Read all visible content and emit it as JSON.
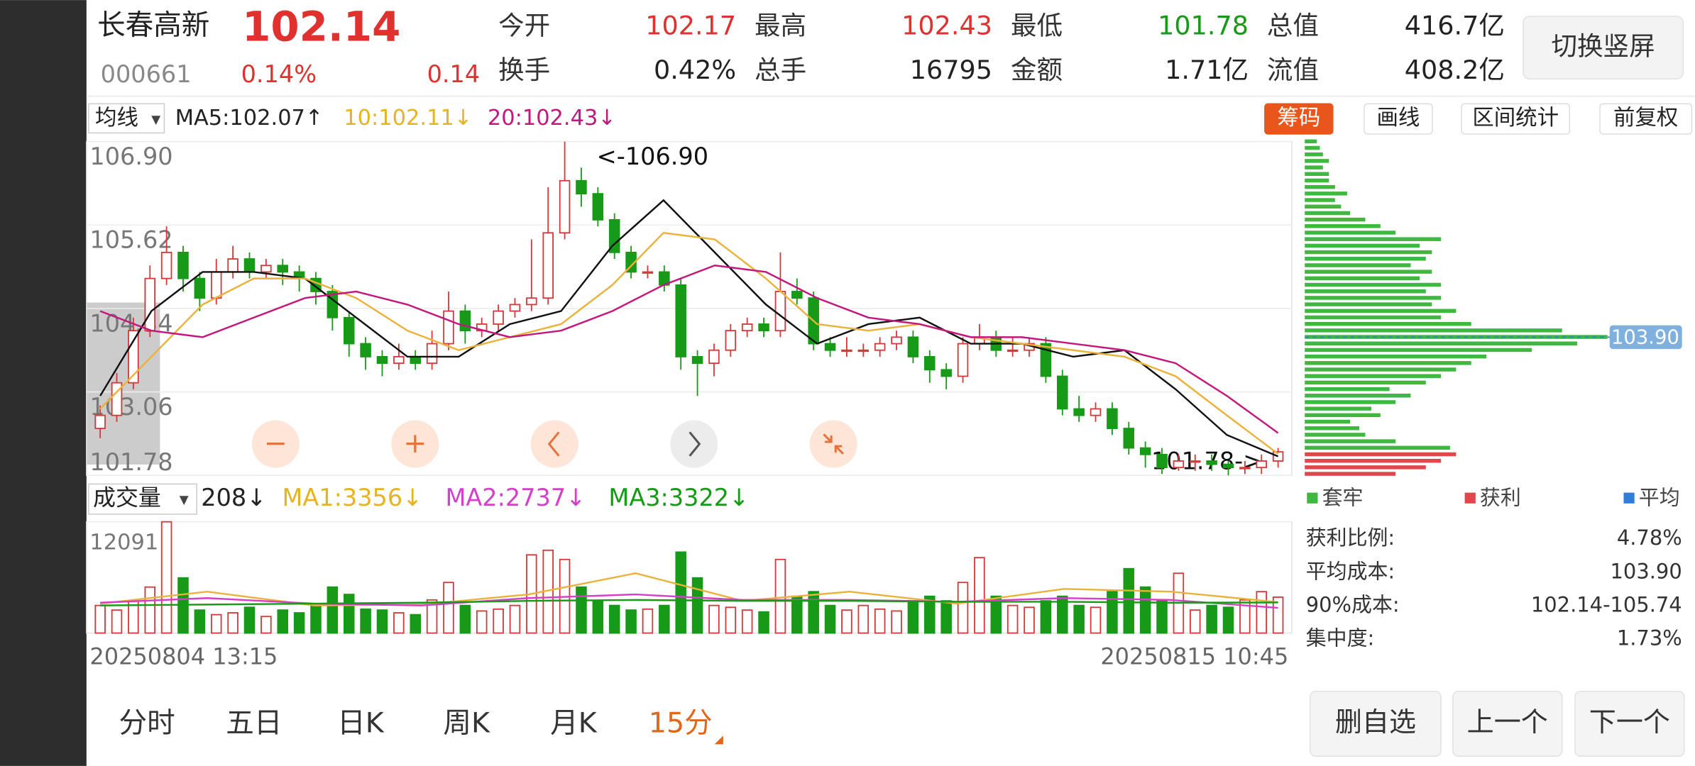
{
  "header": {
    "name": "长春高新",
    "price": "102.14",
    "code": "000661",
    "change_pct": "0.14%",
    "change": "0.14",
    "fields": [
      {
        "label": "今开",
        "value": "102.17",
        "color": "#e0312f"
      },
      {
        "label": "换手",
        "value": "0.42%",
        "color": "#222222"
      },
      {
        "label": "最高",
        "value": "102.43",
        "color": "#e0312f"
      },
      {
        "label": "总手",
        "value": "16795",
        "color": "#222222"
      },
      {
        "label": "最低",
        "value": "101.78",
        "color": "#179a17"
      },
      {
        "label": "金额",
        "value": "1.71亿",
        "color": "#222222"
      },
      {
        "label": "总值",
        "value": "416.7亿",
        "color": "#222222"
      },
      {
        "label": "流值",
        "value": "408.2亿",
        "color": "#222222"
      }
    ],
    "button": "切换竖屏"
  },
  "toolbar": {
    "ma_select": "均线",
    "ma": [
      {
        "text": "MA5:102.07↑",
        "color": "#222222"
      },
      {
        "text": "10:102.11↓",
        "color": "#e8b320"
      },
      {
        "text": "20:102.43↓",
        "color": "#c2187e"
      }
    ],
    "buttons": [
      "筹码",
      "画线",
      "区间统计",
      "前复权"
    ]
  },
  "chart_data": {
    "type": "candlestick",
    "candles": [
      [
        102.5,
        102.85,
        102.35,
        102.7
      ],
      [
        102.7,
        103.35,
        102.6,
        103.2
      ],
      [
        103.2,
        104.2,
        103.1,
        104.0
      ],
      [
        104.0,
        105.0,
        103.9,
        104.8
      ],
      [
        104.8,
        105.6,
        104.7,
        105.2
      ],
      [
        105.2,
        105.3,
        104.6,
        104.8
      ],
      [
        104.8,
        104.9,
        104.3,
        104.5
      ],
      [
        104.5,
        105.1,
        104.4,
        104.9
      ],
      [
        104.9,
        105.3,
        104.8,
        105.1
      ],
      [
        105.1,
        105.2,
        104.8,
        104.9
      ],
      [
        104.9,
        105.1,
        104.8,
        105.0
      ],
      [
        105.0,
        105.1,
        104.7,
        104.9
      ],
      [
        104.9,
        105.0,
        104.6,
        104.8
      ],
      [
        104.8,
        104.9,
        104.4,
        104.6
      ],
      [
        104.6,
        104.7,
        104.0,
        104.2
      ],
      [
        104.2,
        104.3,
        103.6,
        103.8
      ],
      [
        103.8,
        103.9,
        103.4,
        103.6
      ],
      [
        103.6,
        103.7,
        103.3,
        103.5
      ],
      [
        103.5,
        103.8,
        103.4,
        103.6
      ],
      [
        103.6,
        103.7,
        103.4,
        103.5
      ],
      [
        103.5,
        104.0,
        103.4,
        103.8
      ],
      [
        103.8,
        104.6,
        103.7,
        104.3
      ],
      [
        104.3,
        104.4,
        103.8,
        104.0
      ],
      [
        104.0,
        104.2,
        103.9,
        104.1
      ],
      [
        104.1,
        104.4,
        104.0,
        104.3
      ],
      [
        104.3,
        104.5,
        104.2,
        104.4
      ],
      [
        104.4,
        105.4,
        104.3,
        104.5
      ],
      [
        104.5,
        106.2,
        104.4,
        105.5
      ],
      [
        105.5,
        106.9,
        105.4,
        106.3
      ],
      [
        106.3,
        106.5,
        105.9,
        106.1
      ],
      [
        106.1,
        106.2,
        105.6,
        105.7
      ],
      [
        105.7,
        105.8,
        105.1,
        105.2
      ],
      [
        105.2,
        105.3,
        104.8,
        104.9
      ],
      [
        104.9,
        105.0,
        104.8,
        104.9
      ],
      [
        104.9,
        105.0,
        104.6,
        104.7
      ],
      [
        104.7,
        104.8,
        103.4,
        103.6
      ],
      [
        103.6,
        103.7,
        103.0,
        103.5
      ],
      [
        103.5,
        103.8,
        103.3,
        103.7
      ],
      [
        103.7,
        104.1,
        103.6,
        104.0
      ],
      [
        104.0,
        104.2,
        103.9,
        104.1
      ],
      [
        104.1,
        104.2,
        103.9,
        104.0
      ],
      [
        104.0,
        105.2,
        103.9,
        104.6
      ],
      [
        104.6,
        104.8,
        104.4,
        104.5
      ],
      [
        104.5,
        104.6,
        103.7,
        103.8
      ],
      [
        103.8,
        103.9,
        103.6,
        103.7
      ],
      [
        103.7,
        103.9,
        103.6,
        103.7
      ],
      [
        103.7,
        103.8,
        103.6,
        103.7
      ],
      [
        103.7,
        103.9,
        103.6,
        103.8
      ],
      [
        103.8,
        104.0,
        103.7,
        103.9
      ],
      [
        103.9,
        104.0,
        103.5,
        103.6
      ],
      [
        103.6,
        103.7,
        103.2,
        103.4
      ],
      [
        103.4,
        103.5,
        103.1,
        103.3
      ],
      [
        103.3,
        103.9,
        103.2,
        103.8
      ],
      [
        103.8,
        104.1,
        103.7,
        103.9
      ],
      [
        103.9,
        104.0,
        103.6,
        103.7
      ],
      [
        103.7,
        103.9,
        103.6,
        103.7
      ],
      [
        103.7,
        103.9,
        103.6,
        103.8
      ],
      [
        103.8,
        103.9,
        103.2,
        103.3
      ],
      [
        103.3,
        103.4,
        102.7,
        102.8
      ],
      [
        102.8,
        103.0,
        102.6,
        102.7
      ],
      [
        102.7,
        102.9,
        102.6,
        102.8
      ],
      [
        102.8,
        102.9,
        102.4,
        102.5
      ],
      [
        102.5,
        102.6,
        102.1,
        102.2
      ],
      [
        102.2,
        102.3,
        101.9,
        102.1
      ],
      [
        102.1,
        102.2,
        101.8,
        101.9
      ],
      [
        101.9,
        102.1,
        101.85,
        102.0
      ],
      [
        102.0,
        102.1,
        101.85,
        102.0
      ],
      [
        102.0,
        102.1,
        101.85,
        101.95
      ],
      [
        101.95,
        102.0,
        101.78,
        101.9
      ],
      [
        101.9,
        102.0,
        101.8,
        101.9
      ],
      [
        101.9,
        102.1,
        101.8,
        102.0
      ],
      [
        102.0,
        102.2,
        101.9,
        102.14
      ]
    ],
    "ylim": [
      101.78,
      106.9
    ],
    "yticks": [
      {
        "value": 106.9,
        "label": "106.90"
      },
      105.62,
      104.34,
      103.06,
      101.78
    ],
    "up_color": "#d6393a",
    "down_color": "#179a17",
    "annotations": [
      "<-106.90",
      "101.78->"
    ],
    "ma_series": [
      {
        "color": "#111111",
        "values": [
          103.0,
          104.3,
          104.9,
          104.9,
          104.8,
          104.2,
          103.6,
          103.6,
          104.1,
          104.3,
          105.3,
          106.0,
          105.2,
          104.4,
          103.8,
          104.1,
          104.2,
          103.8,
          103.8,
          103.6,
          103.7,
          103.1,
          102.4,
          102.07
        ]
      },
      {
        "color": "#eab23a",
        "values": [
          102.8,
          103.6,
          104.4,
          104.8,
          104.8,
          104.5,
          104.0,
          103.7,
          103.9,
          104.1,
          104.7,
          105.5,
          105.4,
          104.8,
          104.1,
          104.0,
          104.1,
          103.9,
          103.8,
          103.7,
          103.6,
          103.3,
          102.7,
          102.11
        ]
      },
      {
        "color": "#c2187e",
        "values": [
          104.3,
          104.0,
          103.9,
          104.2,
          104.5,
          104.6,
          104.4,
          104.1,
          103.9,
          104.0,
          104.3,
          104.7,
          105.0,
          104.9,
          104.5,
          104.2,
          104.1,
          103.9,
          103.9,
          103.8,
          103.7,
          103.5,
          103.0,
          102.43
        ]
      }
    ],
    "x_labels": [
      "20250804 13:15",
      "20250815 10:45"
    ]
  },
  "volume": {
    "type": "bar",
    "select": "成交量",
    "legend": [
      {
        "text": "208↓",
        "color": "#222222"
      },
      {
        "text": "MA1:3356↓",
        "color": "#e8b320"
      },
      {
        "text": "MA2:2737↓",
        "color": "#d63fc9"
      },
      {
        "text": "MA3:3322↓",
        "color": "#169b16"
      }
    ],
    "values": [
      3000,
      2500,
      3500,
      5000,
      12091,
      6000,
      2500,
      2000,
      2200,
      2800,
      1800,
      2500,
      2200,
      3000,
      5000,
      4200,
      2600,
      2500,
      2200,
      2000,
      3600,
      5500,
      3000,
      2400,
      2600,
      3000,
      8500,
      9000,
      8000,
      5000,
      3500,
      3000,
      2500,
      2600,
      3000,
      8800,
      6000,
      3000,
      2800,
      2500,
      2300,
      8000,
      4000,
      4500,
      3000,
      2500,
      3000,
      2600,
      2400,
      3500,
      4000,
      3500,
      5500,
      8200,
      4000,
      3000,
      2800,
      3500,
      4000,
      3000,
      2800,
      4500,
      7000,
      5000,
      3500,
      6500,
      2500,
      3000,
      2800,
      3600,
      4500,
      3900
    ],
    "ylim": [
      0,
      12091
    ],
    "yticks": [
      12091
    ],
    "ma_series": [
      {
        "color": "#eab23a",
        "values": [
          3200,
          4500,
          3000,
          3100,
          4200,
          6500,
          3500,
          4500,
          3200,
          4800,
          4500,
          3356
        ]
      },
      {
        "color": "#d63fc9",
        "values": [
          3300,
          3800,
          3200,
          3000,
          3800,
          4200,
          3600,
          3600,
          3400,
          3800,
          3600,
          2737
        ]
      },
      {
        "color": "#169b16",
        "values": [
          3000,
          3100,
          3200,
          3300,
          3500,
          3600,
          3500,
          3500,
          3400,
          3400,
          3300,
          3322
        ]
      }
    ]
  },
  "chips": {
    "prices": [
      101.8,
      101.9,
      102.0,
      102.1,
      102.2,
      102.3,
      102.4,
      102.5,
      102.6,
      102.7,
      102.8,
      102.9,
      103.0,
      103.1,
      103.2,
      103.3,
      103.4,
      103.5,
      103.6,
      103.7,
      103.8,
      103.9,
      104.0,
      104.1,
      104.2,
      104.3,
      104.4,
      104.5,
      104.6,
      104.7,
      104.8,
      104.9,
      105.0,
      105.1,
      105.2,
      105.3,
      105.4,
      105.5,
      105.6,
      105.7,
      105.8,
      105.9,
      106.0,
      106.1,
      106.2,
      106.3,
      106.4,
      106.5,
      106.6,
      106.7,
      106.8,
      106.9
    ],
    "values": [
      30,
      40,
      45,
      50,
      48,
      30,
      20,
      18,
      15,
      25,
      22,
      30,
      35,
      28,
      40,
      45,
      50,
      55,
      60,
      75,
      90,
      100,
      85,
      55,
      45,
      50,
      42,
      45,
      40,
      45,
      38,
      42,
      35,
      40,
      42,
      38,
      45,
      30,
      25,
      20,
      15,
      12,
      10,
      14,
      10,
      8,
      8,
      6,
      8,
      6,
      5,
      4
    ],
    "xlim": [
      0,
      100
    ],
    "avg": {
      "value": 103.9,
      "label": "103.90"
    },
    "legend": [
      {
        "text": "套牢",
        "color": "#3fb83f"
      },
      {
        "text": "获利",
        "color": "#e0474c"
      },
      {
        "text": "平均",
        "color": "#2f7fd8"
      }
    ]
  },
  "stats": [
    [
      "获利比例:",
      "4.78%"
    ],
    [
      "平均成本:",
      "103.90"
    ],
    [
      "90%成本:",
      "102.14-105.74"
    ],
    [
      "集中度:",
      "1.73%"
    ]
  ],
  "tabs": {
    "items": [
      "分时",
      "五日",
      "日K",
      "周K",
      "月K",
      "15分"
    ],
    "active": 5
  },
  "actions": [
    "删自选",
    "上一个",
    "下一个"
  ]
}
